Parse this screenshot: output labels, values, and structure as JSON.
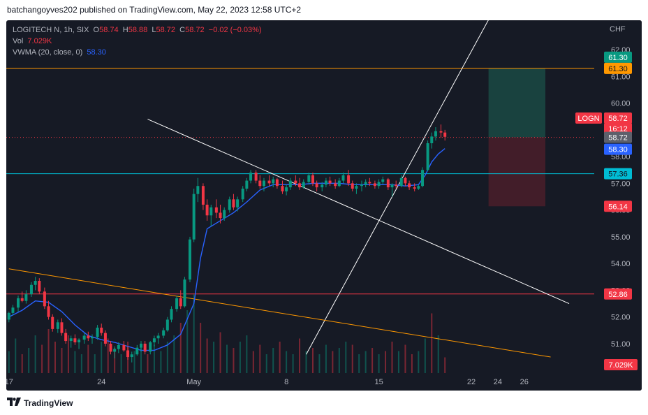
{
  "header": {
    "publish_text": "batchangoyves202 published on TradingView.com, May 22, 2023 12:58 UTC+2"
  },
  "legend": {
    "symbol": "LOGITECH N, 1h, SIX",
    "o_label": "O",
    "o_value": "58.74",
    "h_label": "H",
    "h_value": "58.88",
    "l_label": "L",
    "l_value": "58.72",
    "c_label": "C",
    "c_value": "58.72",
    "change": "−0.02 (−0.03%)",
    "vol_label": "Vol",
    "vol_value": "7.029K",
    "vwma_label": "VWMA (20, close, 0)",
    "vwma_value": "58.30"
  },
  "footer": {
    "brand": "TradingView"
  },
  "colors": {
    "background": "#161a25",
    "up": "#089981",
    "down": "#f23645",
    "vwma": "#2962ff",
    "orange": "#ff9800",
    "cyan": "#00bcd4",
    "profit_zone": "#1a4a44",
    "loss_zone": "#4a1f2a"
  },
  "chart_data": {
    "type": "candlestick",
    "currency": "CHF",
    "y_ticks": [
      "62.00",
      "61.00",
      "60.00",
      "58.00",
      "57.00",
      "56.00",
      "55.00",
      "54.00",
      "53.00",
      "52.00",
      "51.00"
    ],
    "x_ticks": [
      "17",
      "24",
      "May",
      "8",
      "15",
      "22",
      "24",
      "26"
    ],
    "price_labels": [
      {
        "name": "target",
        "text": "61.30",
        "color": "#089981"
      },
      {
        "name": "resistance",
        "text": "61.30",
        "color": "#ff9800"
      },
      {
        "name": "symbol",
        "text": "LOGN",
        "color": "#f23645"
      },
      {
        "name": "last",
        "text": "58.72",
        "color": "#f23645"
      },
      {
        "name": "countdown",
        "text": "16:12",
        "color": "#f23645"
      },
      {
        "name": "last-gray",
        "text": "58.72",
        "color": "#5d606b"
      },
      {
        "name": "vwma",
        "text": "58.30",
        "color": "#2962ff"
      },
      {
        "name": "support",
        "text": "57.36",
        "color": "#00bcd4"
      },
      {
        "name": "stop",
        "text": "56.14",
        "color": "#f23645"
      },
      {
        "name": "low-line",
        "text": "52.86",
        "color": "#f23645"
      },
      {
        "name": "volume",
        "text": "7.029K",
        "color": "#f23645"
      }
    ],
    "horizontal_lines": [
      {
        "name": "resistance-line",
        "price": 61.3,
        "color": "#ff9800"
      },
      {
        "name": "support-line",
        "price": 57.36,
        "color": "#00bcd4"
      },
      {
        "name": "low-line",
        "price": 52.86,
        "color": "#f23645"
      }
    ],
    "position": {
      "entry": 58.72,
      "target": 61.3,
      "stop": 56.14,
      "from_day": 22.3,
      "to_day": 26.6
    },
    "trendlines": [
      {
        "name": "uptrend-line",
        "color": "#ffffff",
        "p1": [
          8.5,
          50.6
        ],
        "p2": [
          22.5,
          63.3
        ]
      },
      {
        "name": "downtrend-line",
        "color": "#ffffff",
        "p1": [
          -3.5,
          59.4
        ],
        "p2": [
          28.4,
          52.5
        ]
      },
      {
        "name": "orange-downtrend-line",
        "color": "#ff9800",
        "p1": [
          -14,
          53.8
        ],
        "p2": [
          27,
          50.5
        ]
      }
    ],
    "x_domain": [
      -14.2,
      30.3
    ],
    "y_domain": [
      49.9,
      63.1
    ],
    "candles": [
      [
        -14.0,
        51.9,
        52.2,
        51.8,
        52.15
      ],
      [
        -13.7,
        52.15,
        52.45,
        52.05,
        52.35
      ],
      [
        -13.3,
        52.35,
        52.8,
        52.2,
        52.7
      ],
      [
        -13.0,
        52.7,
        52.95,
        52.55,
        52.6
      ],
      [
        -12.7,
        52.6,
        53.0,
        52.5,
        52.85
      ],
      [
        -12.3,
        52.85,
        53.3,
        52.75,
        53.2
      ],
      [
        -12.0,
        53.2,
        53.5,
        53.0,
        53.35
      ],
      [
        -11.7,
        53.35,
        53.45,
        52.85,
        52.95
      ],
      [
        -11.3,
        52.95,
        53.1,
        52.3,
        52.4
      ],
      [
        -11.0,
        52.4,
        52.6,
        51.9,
        52.0
      ],
      [
        -10.7,
        52.0,
        52.1,
        51.45,
        51.55
      ],
      [
        -10.3,
        51.55,
        51.9,
        51.4,
        51.8
      ],
      [
        -10.0,
        51.8,
        51.95,
        51.3,
        51.4
      ],
      [
        -9.7,
        51.4,
        51.55,
        51.0,
        51.1
      ],
      [
        -9.3,
        51.1,
        51.3,
        50.85,
        51.2
      ],
      [
        -9.0,
        51.2,
        51.35,
        50.95,
        51.05
      ],
      [
        -8.7,
        51.05,
        51.2,
        50.8,
        51.15
      ],
      [
        -8.3,
        51.15,
        51.4,
        51.0,
        51.3
      ],
      [
        -8.0,
        51.3,
        51.45,
        51.1,
        51.2
      ],
      [
        -7.7,
        51.2,
        51.35,
        51.0,
        51.25
      ],
      [
        -7.3,
        51.25,
        51.7,
        51.15,
        51.6
      ],
      [
        -7.0,
        51.6,
        51.75,
        51.3,
        51.4
      ],
      [
        -6.7,
        51.4,
        51.5,
        50.9,
        51.0
      ],
      [
        -6.3,
        51.0,
        51.1,
        50.6,
        50.7
      ],
      [
        -6.0,
        50.7,
        50.9,
        50.45,
        50.8
      ],
      [
        -5.7,
        50.8,
        51.05,
        50.65,
        50.95
      ],
      [
        -5.3,
        50.95,
        51.1,
        50.7,
        50.75
      ],
      [
        -5.0,
        50.75,
        50.9,
        50.4,
        50.5
      ],
      [
        -4.7,
        50.5,
        50.7,
        50.3,
        50.6
      ],
      [
        -4.3,
        50.6,
        50.95,
        50.55,
        50.85
      ],
      [
        -4.0,
        50.85,
        51.1,
        50.7,
        51.0
      ],
      [
        -3.7,
        51.0,
        51.1,
        50.6,
        50.7
      ],
      [
        -3.3,
        50.7,
        51.1,
        50.6,
        51.05
      ],
      [
        -3.0,
        51.05,
        51.3,
        50.9,
        51.2
      ],
      [
        -2.7,
        51.2,
        51.4,
        51.0,
        51.3
      ],
      [
        -2.3,
        51.3,
        51.6,
        51.2,
        51.5
      ],
      [
        -2.0,
        51.5,
        52.0,
        51.45,
        51.9
      ],
      [
        -1.7,
        51.9,
        52.4,
        51.8,
        52.3
      ],
      [
        -1.3,
        52.3,
        52.8,
        52.2,
        52.7
      ],
      [
        -1.0,
        52.7,
        53.0,
        52.3,
        52.4
      ],
      [
        -0.7,
        52.4,
        53.5,
        52.35,
        53.4
      ],
      [
        -0.3,
        53.4,
        55.0,
        53.3,
        54.9
      ],
      [
        0.0,
        54.9,
        56.8,
        54.8,
        56.6
      ],
      [
        0.3,
        56.6,
        57.2,
        56.3,
        56.9
      ],
      [
        0.7,
        56.9,
        57.0,
        56.0,
        56.2
      ],
      [
        1.0,
        56.2,
        56.4,
        55.6,
        55.8
      ],
      [
        1.3,
        55.8,
        56.2,
        55.4,
        56.1
      ],
      [
        1.7,
        56.1,
        56.4,
        55.7,
        55.9
      ],
      [
        2.0,
        55.9,
        56.2,
        55.5,
        55.7
      ],
      [
        2.3,
        55.7,
        56.1,
        55.6,
        56.0
      ],
      [
        2.7,
        56.0,
        56.5,
        55.9,
        56.4
      ],
      [
        3.0,
        56.4,
        56.6,
        56.0,
        56.1
      ],
      [
        3.3,
        56.1,
        56.5,
        55.95,
        56.4
      ],
      [
        3.7,
        56.4,
        56.9,
        56.3,
        56.8
      ],
      [
        4.0,
        56.8,
        57.2,
        56.7,
        57.1
      ],
      [
        4.3,
        57.1,
        57.5,
        57.0,
        57.4
      ],
      [
        4.7,
        57.4,
        57.5,
        57.0,
        57.1
      ],
      [
        5.0,
        57.1,
        57.3,
        56.8,
        56.9
      ],
      [
        5.3,
        56.9,
        57.2,
        56.7,
        57.1
      ],
      [
        5.7,
        57.1,
        57.3,
        56.9,
        57.0
      ],
      [
        6.0,
        57.0,
        57.25,
        56.85,
        57.15
      ],
      [
        6.3,
        57.15,
        57.2,
        56.8,
        56.9
      ],
      [
        6.7,
        56.9,
        57.1,
        56.6,
        56.7
      ],
      [
        7.0,
        56.7,
        56.95,
        56.55,
        56.85
      ],
      [
        7.3,
        56.85,
        57.2,
        56.75,
        57.1
      ],
      [
        7.7,
        57.1,
        57.3,
        56.9,
        57.0
      ],
      [
        8.0,
        57.0,
        57.2,
        56.75,
        56.85
      ],
      [
        8.3,
        56.85,
        57.15,
        56.8,
        57.05
      ],
      [
        8.7,
        57.05,
        57.4,
        56.95,
        57.3
      ],
      [
        9.0,
        57.3,
        57.4,
        56.9,
        57.0
      ],
      [
        9.3,
        57.0,
        57.1,
        56.7,
        56.85
      ],
      [
        9.7,
        56.85,
        57.05,
        56.7,
        56.95
      ],
      [
        10.0,
        56.95,
        57.2,
        56.85,
        57.1
      ],
      [
        10.3,
        57.1,
        57.25,
        56.9,
        57.0
      ],
      [
        10.7,
        57.0,
        57.15,
        56.8,
        56.9
      ],
      [
        11.0,
        56.9,
        57.2,
        56.85,
        57.1
      ],
      [
        11.3,
        57.1,
        57.4,
        57.0,
        57.3
      ],
      [
        11.7,
        57.3,
        57.5,
        56.9,
        57.0
      ],
      [
        12.0,
        57.0,
        57.1,
        56.7,
        56.8
      ],
      [
        12.3,
        56.8,
        57.0,
        56.6,
        56.9
      ],
      [
        12.7,
        56.9,
        57.1,
        56.7,
        56.95
      ],
      [
        13.0,
        56.95,
        57.15,
        56.85,
        57.05
      ],
      [
        13.3,
        57.05,
        57.2,
        56.9,
        57.0
      ],
      [
        13.7,
        57.0,
        57.1,
        56.8,
        56.9
      ],
      [
        14.0,
        56.9,
        57.15,
        56.8,
        57.05
      ],
      [
        14.3,
        57.05,
        57.25,
        56.95,
        57.15
      ],
      [
        14.7,
        57.15,
        57.2,
        56.75,
        56.85
      ],
      [
        15.0,
        56.85,
        57.0,
        56.5,
        56.95
      ],
      [
        15.3,
        56.95,
        57.1,
        56.8,
        56.9
      ],
      [
        15.7,
        56.9,
        57.3,
        56.85,
        57.2
      ],
      [
        16.0,
        57.2,
        57.25,
        56.9,
        57.0
      ],
      [
        16.3,
        57.0,
        57.1,
        56.75,
        56.85
      ],
      [
        16.7,
        56.85,
        57.0,
        56.7,
        56.8
      ],
      [
        17.0,
        56.8,
        56.95,
        56.75,
        56.9
      ],
      [
        17.3,
        56.9,
        57.6,
        56.85,
        57.5
      ],
      [
        17.7,
        57.5,
        58.6,
        57.45,
        58.5
      ],
      [
        18.0,
        58.5,
        58.9,
        58.3,
        58.75
      ],
      [
        18.3,
        58.75,
        59.1,
        58.6,
        58.95
      ],
      [
        18.7,
        58.95,
        59.2,
        58.7,
        58.9
      ],
      [
        19.0,
        58.9,
        59.0,
        58.6,
        58.74
      ]
    ],
    "vwma": [
      [
        -14.0,
        52.0
      ],
      [
        -13.0,
        52.25
      ],
      [
        -12.0,
        52.6
      ],
      [
        -11.0,
        52.55
      ],
      [
        -10.0,
        52.2
      ],
      [
        -9.0,
        51.7
      ],
      [
        -8.0,
        51.3
      ],
      [
        -7.0,
        51.15
      ],
      [
        -6.0,
        51.05
      ],
      [
        -5.0,
        50.9
      ],
      [
        -4.0,
        50.75
      ],
      [
        -3.0,
        50.75
      ],
      [
        -2.0,
        50.95
      ],
      [
        -1.0,
        51.35
      ],
      [
        0.0,
        52.5
      ],
      [
        0.5,
        54.2
      ],
      [
        1.0,
        55.3
      ],
      [
        2.0,
        55.6
      ],
      [
        3.0,
        55.9
      ],
      [
        4.0,
        56.3
      ],
      [
        5.0,
        56.75
      ],
      [
        6.0,
        56.95
      ],
      [
        7.0,
        56.95
      ],
      [
        8.0,
        56.95
      ],
      [
        9.0,
        57.0
      ],
      [
        10.0,
        57.0
      ],
      [
        11.0,
        57.0
      ],
      [
        12.0,
        56.95
      ],
      [
        13.0,
        56.95
      ],
      [
        14.0,
        56.95
      ],
      [
        15.0,
        56.95
      ],
      [
        16.0,
        56.9
      ],
      [
        17.0,
        56.95
      ],
      [
        17.5,
        57.3
      ],
      [
        18.0,
        57.8
      ],
      [
        18.5,
        58.1
      ],
      [
        19.0,
        58.3
      ]
    ],
    "volume": [
      [
        -14.0,
        0.35,
        1
      ],
      [
        -13.5,
        0.55,
        1
      ],
      [
        -13.0,
        0.3,
        0
      ],
      [
        -12.5,
        0.4,
        1
      ],
      [
        -12.0,
        0.6,
        1
      ],
      [
        -11.5,
        0.45,
        0
      ],
      [
        -11.0,
        0.7,
        0
      ],
      [
        -10.5,
        0.5,
        0
      ],
      [
        -10.0,
        0.4,
        0
      ],
      [
        -9.5,
        0.6,
        0
      ],
      [
        -9.0,
        0.35,
        1
      ],
      [
        -8.5,
        0.3,
        1
      ],
      [
        -8.0,
        0.45,
        0
      ],
      [
        -7.5,
        0.3,
        1
      ],
      [
        -7.0,
        0.5,
        1
      ],
      [
        -6.5,
        0.55,
        0
      ],
      [
        -6.0,
        0.4,
        0
      ],
      [
        -5.5,
        0.3,
        1
      ],
      [
        -5.0,
        0.5,
        0
      ],
      [
        -4.5,
        0.35,
        1
      ],
      [
        -4.0,
        0.4,
        1
      ],
      [
        -3.5,
        0.3,
        0
      ],
      [
        -3.0,
        0.45,
        1
      ],
      [
        -2.5,
        0.35,
        1
      ],
      [
        -2.0,
        0.5,
        1
      ],
      [
        -1.5,
        0.6,
        1
      ],
      [
        -1.0,
        0.8,
        0
      ],
      [
        -0.5,
        1.0,
        1
      ],
      [
        0.0,
        1.25,
        1
      ],
      [
        0.5,
        0.8,
        0
      ],
      [
        1.0,
        0.55,
        0
      ],
      [
        1.5,
        0.5,
        1
      ],
      [
        2.0,
        0.65,
        0
      ],
      [
        2.5,
        0.45,
        1
      ],
      [
        3.0,
        0.4,
        0
      ],
      [
        3.5,
        0.5,
        1
      ],
      [
        4.0,
        0.6,
        1
      ],
      [
        4.5,
        0.35,
        0
      ],
      [
        5.0,
        0.45,
        0
      ],
      [
        5.5,
        0.3,
        1
      ],
      [
        6.0,
        0.4,
        1
      ],
      [
        6.5,
        0.5,
        0
      ],
      [
        7.0,
        0.35,
        1
      ],
      [
        7.5,
        0.3,
        1
      ],
      [
        8.0,
        0.55,
        0
      ],
      [
        8.5,
        0.35,
        1
      ],
      [
        9.0,
        0.4,
        0
      ],
      [
        9.5,
        0.3,
        1
      ],
      [
        10.0,
        0.45,
        1
      ],
      [
        10.5,
        0.35,
        0
      ],
      [
        11.0,
        0.4,
        1
      ],
      [
        11.5,
        0.5,
        1
      ],
      [
        12.0,
        0.45,
        0
      ],
      [
        12.5,
        0.3,
        1
      ],
      [
        13.0,
        0.35,
        1
      ],
      [
        13.5,
        0.4,
        0
      ],
      [
        14.0,
        0.3,
        1
      ],
      [
        14.5,
        0.35,
        0
      ],
      [
        15.0,
        0.5,
        0
      ],
      [
        15.5,
        0.35,
        1
      ],
      [
        16.0,
        0.45,
        0
      ],
      [
        16.5,
        0.3,
        0
      ],
      [
        17.0,
        0.35,
        1
      ],
      [
        17.5,
        0.55,
        1
      ],
      [
        18.0,
        0.95,
        0
      ],
      [
        18.5,
        0.6,
        1
      ],
      [
        19.0,
        0.25,
        0
      ]
    ]
  }
}
